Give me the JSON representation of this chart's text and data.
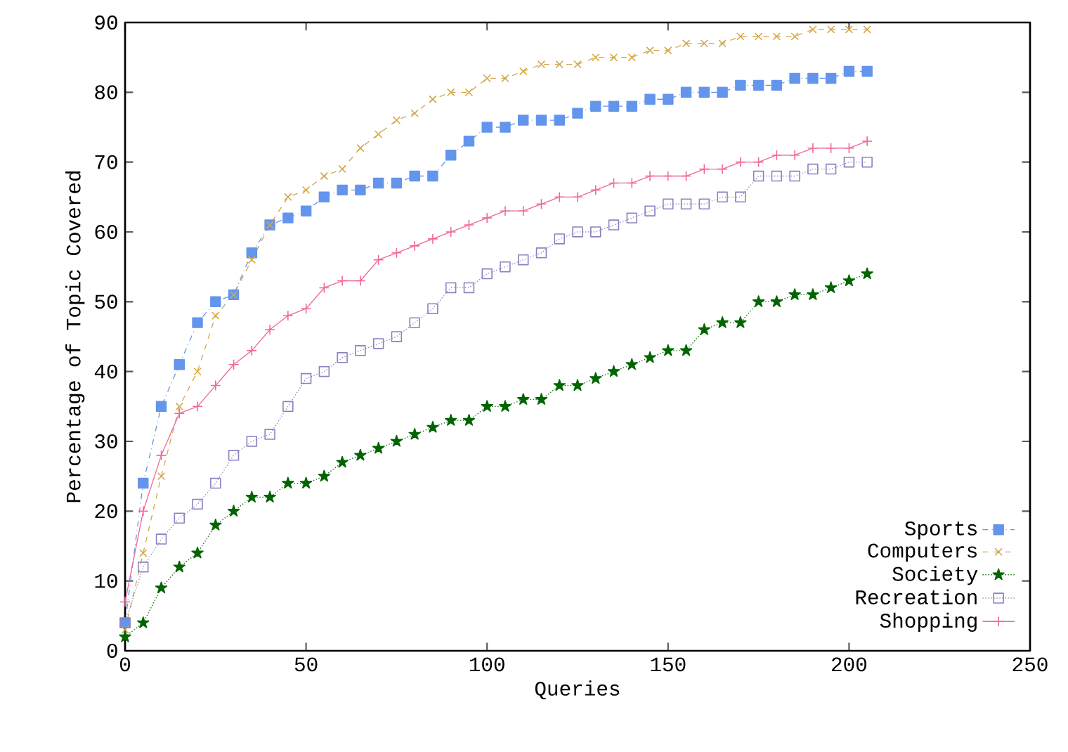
{
  "chart_data": {
    "type": "line",
    "xlabel": "Queries",
    "ylabel": "Percentage of Topic Covered",
    "x": [
      0,
      5,
      10,
      15,
      20,
      25,
      30,
      35,
      40,
      45,
      50,
      55,
      60,
      65,
      70,
      75,
      80,
      85,
      90,
      95,
      100,
      105,
      110,
      115,
      120,
      125,
      130,
      135,
      140,
      145,
      150,
      155,
      160,
      165,
      170,
      175,
      180,
      185,
      190,
      195,
      200,
      205
    ],
    "xlim": [
      0,
      250
    ],
    "ylim": [
      0,
      90
    ],
    "xticks": [
      0,
      50,
      100,
      150,
      200,
      250
    ],
    "yticks": [
      0,
      10,
      20,
      30,
      40,
      50,
      60,
      70,
      80,
      90
    ],
    "grid": false,
    "legend": "bottom right",
    "series": [
      {
        "name": "Sports",
        "color": "#6495ed",
        "marker": "square",
        "line_style": "dashdot",
        "values": [
          4,
          24,
          35,
          41,
          47,
          50,
          51,
          57,
          61,
          62,
          63,
          65,
          66,
          66,
          67,
          67,
          68,
          68,
          71,
          73,
          75,
          75,
          76,
          76,
          76,
          77,
          78,
          78,
          78,
          79,
          79,
          80,
          80,
          80,
          81,
          81,
          81,
          82,
          82,
          82,
          83,
          83
        ]
      },
      {
        "name": "Computers",
        "color": "#d4a84a",
        "marker": "cross",
        "line_style": "dashed",
        "values": [
          3,
          14,
          25,
          35,
          40,
          48,
          51,
          56,
          61,
          65,
          66,
          68,
          69,
          72,
          74,
          76,
          77,
          79,
          80,
          80,
          82,
          82,
          83,
          84,
          84,
          84,
          85,
          85,
          85,
          86,
          86,
          87,
          87,
          87,
          88,
          88,
          88,
          88,
          89,
          89,
          89,
          89
        ]
      },
      {
        "name": "Society",
        "color": "#006400",
        "marker": "star",
        "line_style": "dotted",
        "values": [
          2,
          4,
          9,
          12,
          14,
          18,
          20,
          22,
          22,
          24,
          24,
          25,
          27,
          28,
          29,
          30,
          31,
          32,
          33,
          33,
          35,
          35,
          36,
          36,
          38,
          38,
          39,
          40,
          41,
          42,
          43,
          43,
          46,
          47,
          47,
          50,
          50,
          51,
          51,
          52,
          53,
          54
        ]
      },
      {
        "name": "Recreation",
        "color": "#8e80c0",
        "marker": "square_open",
        "line_style": "dotted",
        "values": [
          4,
          12,
          16,
          19,
          21,
          24,
          28,
          30,
          31,
          35,
          39,
          40,
          42,
          43,
          44,
          45,
          47,
          49,
          52,
          52,
          54,
          55,
          56,
          57,
          59,
          60,
          60,
          61,
          62,
          63,
          64,
          64,
          64,
          65,
          65,
          68,
          68,
          68,
          69,
          69,
          70,
          70
        ]
      },
      {
        "name": "Shopping",
        "color": "#f0689a",
        "marker": "plus",
        "line_style": "solid",
        "values": [
          7,
          20,
          28,
          34,
          35,
          38,
          41,
          43,
          46,
          48,
          49,
          52,
          53,
          53,
          56,
          57,
          58,
          59,
          60,
          61,
          62,
          63,
          63,
          64,
          65,
          65,
          66,
          67,
          67,
          68,
          68,
          68,
          69,
          69,
          70,
          70,
          71,
          71,
          72,
          72,
          72,
          73
        ]
      }
    ]
  }
}
